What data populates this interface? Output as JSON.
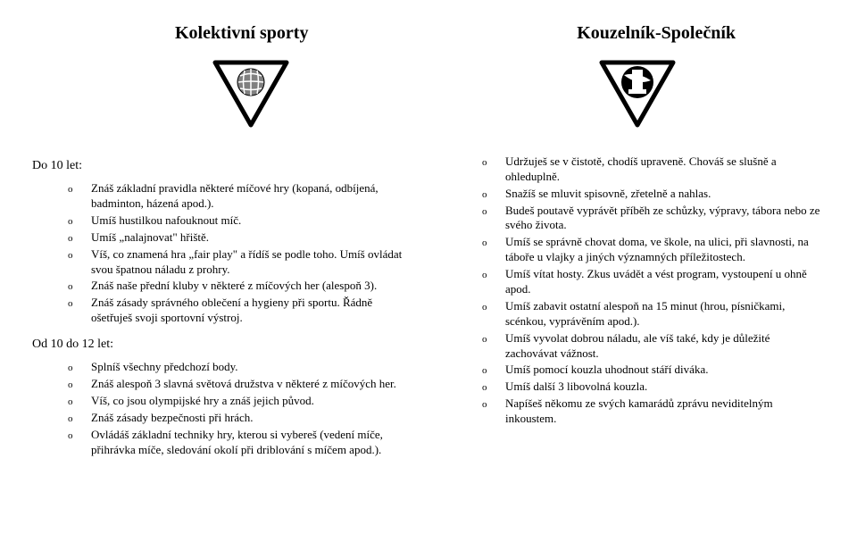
{
  "titles": {
    "left": "Kolektivní sporty",
    "right": "Kouzelník-Společník"
  },
  "badge_colors": {
    "triangle_border": "#000000",
    "triangle_fill": "#ffffff",
    "inner_circle_fill": "#808080",
    "inner_shape_fill": "#ffffff",
    "right_inner_bg": "#000000"
  },
  "left": {
    "section1_head": "Do 10 let:",
    "section1_items": [
      "Znáš základní pravidla některé míčové hry (kopaná, odbíjená, badminton, házená apod.).",
      "Umíš hustilkou nafouknout míč.",
      "Umíš „nalajnovat\" hřiště.",
      "Víš, co znamená hra „fair play\" a řídíš se podle toho. Umíš ovládat svou špatnou náladu z prohry.",
      "Znáš naše přední kluby v některé z míčových her (alespoň 3).",
      "Znáš zásady správného oblečení a hygieny při sportu. Řádně ošetřuješ svoji sportovní výstroj."
    ],
    "section2_head": "Od 10 do 12 let:",
    "section2_items": [
      "Splníš všechny předchozí body.",
      "Znáš alespoň 3 slavná světová družstva v některé z míčových her.",
      "Víš, co jsou olympijské hry a znáš jejich původ.",
      "Znáš zásady bezpečnosti při hrách.",
      "Ovládáš základní techniky hry, kterou si vybereš (vedení míče, přihrávka míče, sledování okolí při driblování s míčem apod.)."
    ]
  },
  "right": {
    "items": [
      "Udržuješ se v čistotě, chodíš upraveně. Chováš se slušně a ohleduplně.",
      "Snažíš se mluvit spisovně, zřetelně a nahlas.",
      "Budeš poutavě vyprávět příběh ze schůzky, výpravy, tábora nebo ze svého života.",
      "Umíš se správně chovat doma, ve škole, na ulici, při slavnosti, na táboře u vlajky a jiných významných příležitostech.",
      "Umíš vítat hosty. Zkus uvádět a vést program, vystoupení u ohně apod.",
      "Umíš zabavit ostatní alespoň na 15 minut (hrou, písničkami, scénkou, vyprávěním apod.).",
      "Umíš vyvolat dobrou náladu, ale víš také, kdy je důležité zachovávat vážnost.",
      "Umíš pomocí kouzla uhodnout stáří diváka.",
      "Umíš další 3 libovolná kouzla.",
      "Napíšeš někomu ze svých kamarádů zprávu neviditelným inkoustem."
    ]
  },
  "bullet": "o"
}
